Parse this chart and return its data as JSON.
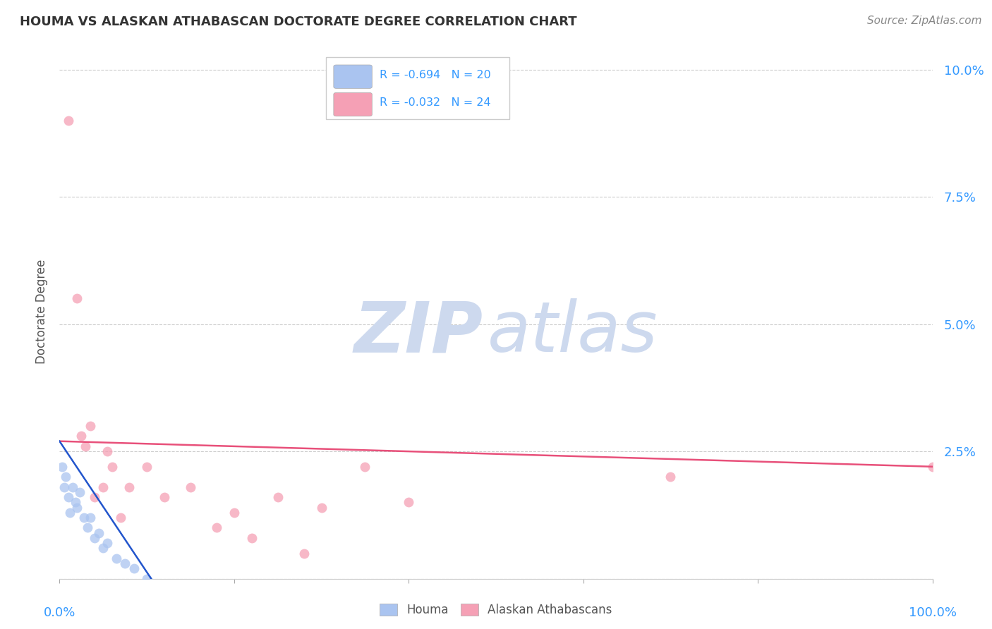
{
  "title": "HOUMA VS ALASKAN ATHABASCAN DOCTORATE DEGREE CORRELATION CHART",
  "source": "Source: ZipAtlas.com",
  "ylabel": "Doctorate Degree",
  "xlim": [
    0,
    100
  ],
  "ylim": [
    0,
    0.105
  ],
  "yticks": [
    0,
    0.025,
    0.05,
    0.075,
    0.1
  ],
  "ytick_labels": [
    "",
    "2.5%",
    "5.0%",
    "7.5%",
    "10.0%"
  ],
  "background_color": "#ffffff",
  "grid_color": "#cccccc",
  "houma_color": "#aac4f0",
  "athabascan_color": "#f5a0b5",
  "houma_line_color": "#2255cc",
  "athabascan_line_color": "#e8507a",
  "legend_r_houma": "R = -0.694",
  "legend_n_houma": "N = 20",
  "legend_r_athabascan": "R = -0.032",
  "legend_n_athabascan": "N = 24",
  "houma_x": [
    0.3,
    0.5,
    0.7,
    1.0,
    1.2,
    1.5,
    1.8,
    2.0,
    2.3,
    2.8,
    3.2,
    3.5,
    4.0,
    4.5,
    5.0,
    5.5,
    6.5,
    7.5,
    8.5,
    10.0
  ],
  "houma_y": [
    0.022,
    0.018,
    0.02,
    0.016,
    0.013,
    0.018,
    0.015,
    0.014,
    0.017,
    0.012,
    0.01,
    0.012,
    0.008,
    0.009,
    0.006,
    0.007,
    0.004,
    0.003,
    0.002,
    0.0
  ],
  "athabascan_x": [
    1.0,
    2.0,
    2.5,
    3.0,
    3.5,
    4.0,
    5.0,
    5.5,
    6.0,
    7.0,
    8.0,
    10.0,
    12.0,
    15.0,
    18.0,
    20.0,
    22.0,
    25.0,
    28.0,
    30.0,
    35.0,
    40.0,
    70.0,
    100.0
  ],
  "athabascan_y": [
    0.09,
    0.055,
    0.028,
    0.026,
    0.03,
    0.016,
    0.018,
    0.025,
    0.022,
    0.012,
    0.018,
    0.022,
    0.016,
    0.018,
    0.01,
    0.013,
    0.008,
    0.016,
    0.005,
    0.014,
    0.022,
    0.015,
    0.02,
    0.022
  ],
  "athabascan_trend_x": [
    0,
    100
  ],
  "athabascan_trend_y": [
    0.027,
    0.022
  ],
  "houma_trend_x0": 0.0,
  "houma_trend_y0": 0.027,
  "houma_trend_x1": 10.5,
  "houma_trend_y1": 0.0,
  "watermark_zip": "ZIP",
  "watermark_atlas": "atlas",
  "watermark_color": "#cdd9ee",
  "marker_size": 100
}
